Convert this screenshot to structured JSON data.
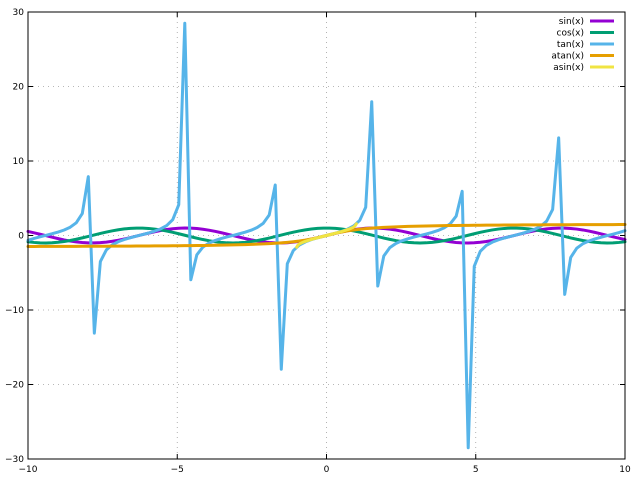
{
  "chart_data": {
    "type": "line",
    "title": "",
    "xlabel": "",
    "ylabel": "",
    "xlim": [
      -10,
      10
    ],
    "ylim": [
      -30,
      30
    ],
    "grid": true,
    "legend_position": "top-right",
    "x_ticks": [
      -10,
      -5,
      0,
      5,
      10
    ],
    "x_tick_labels": [
      "−10",
      "−5",
      "0",
      "5",
      "10"
    ],
    "y_ticks": [
      -30,
      -20,
      -10,
      0,
      10,
      20,
      30
    ],
    "y_tick_labels": [
      "−30",
      "−20",
      "−10",
      "0",
      "10",
      "20",
      "30"
    ],
    "samples": 100,
    "series": [
      {
        "name": "sin(x)",
        "function": "sin",
        "color": "#9400d3"
      },
      {
        "name": "cos(x)",
        "function": "cos",
        "color": "#009e73"
      },
      {
        "name": "tan(x)",
        "function": "tan",
        "color": "#56b4e9"
      },
      {
        "name": "atan(x)",
        "function": "atan",
        "color": "#e69f00"
      },
      {
        "name": "asin(x)",
        "function": "asin",
        "color": "#f0e442"
      }
    ]
  }
}
